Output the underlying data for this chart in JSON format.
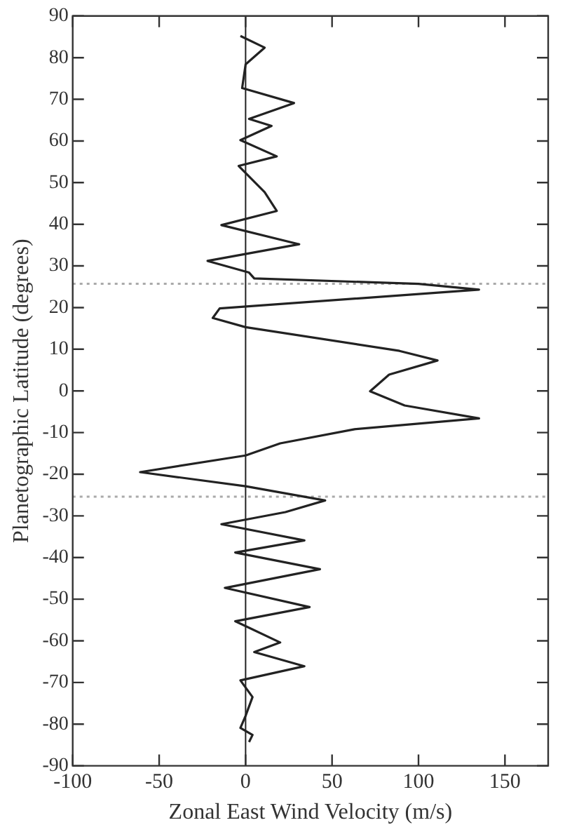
{
  "chart_data": {
    "type": "line",
    "xlabel": "Zonal East Wind Velocity (m/s)",
    "ylabel": "Planetographic Latitude (degrees)",
    "xlim": [
      -100,
      175
    ],
    "xticks": [
      -100,
      -50,
      0,
      50,
      100,
      150
    ],
    "ylim": [
      -90,
      90
    ],
    "yticks": [
      -90,
      -80,
      -70,
      -60,
      -50,
      -40,
      -30,
      -20,
      -10,
      0,
      10,
      20,
      30,
      40,
      50,
      60,
      70,
      80,
      90
    ],
    "grid": false,
    "legend": false,
    "marker": "none",
    "line_style": "solid",
    "series": [
      {
        "color": "#222222",
        "x": [
          -3,
          11,
          0,
          -2,
          28,
          2,
          15,
          -3,
          18,
          -4,
          11,
          18,
          -14,
          31,
          -22,
          2,
          5,
          100,
          135,
          -15,
          -19,
          0,
          89,
          111,
          83,
          72,
          92,
          135,
          63,
          20,
          0,
          -61,
          0,
          46,
          23,
          -14,
          34,
          -6,
          43,
          -12,
          37,
          -6,
          20,
          5,
          34,
          -3,
          4,
          0,
          -3,
          4,
          2
        ],
        "values": [
          85.2,
          82.4,
          78.4,
          72.7,
          69.1,
          65.3,
          63.6,
          60.2,
          56.3,
          54,
          47.7,
          43.2,
          39.8,
          35.2,
          31.2,
          28.4,
          27,
          25.7,
          24.3,
          19.8,
          17.5,
          15.3,
          9.6,
          7.3,
          3.9,
          -0.1,
          -3.5,
          -6.6,
          -9.2,
          -12.6,
          -15.5,
          -19.5,
          -22.9,
          -26.3,
          -29.1,
          -32,
          -35.9,
          -38.8,
          -42.8,
          -47.3,
          -51.9,
          -55.3,
          -60.4,
          -62.7,
          -66.1,
          -69.5,
          -73.5,
          -78,
          -80.9,
          -82.6,
          -84.3
        ]
      }
    ],
    "ref_lines": [
      {
        "axis": "x",
        "value": 0,
        "color": "#222222",
        "line_style": "solid"
      },
      {
        "axis": "y",
        "value": 25.7,
        "color": "#aaaaaa",
        "line_style": "dotted"
      },
      {
        "axis": "y",
        "value": -25.4,
        "color": "#aaaaaa",
        "line_style": "dotted"
      }
    ]
  }
}
